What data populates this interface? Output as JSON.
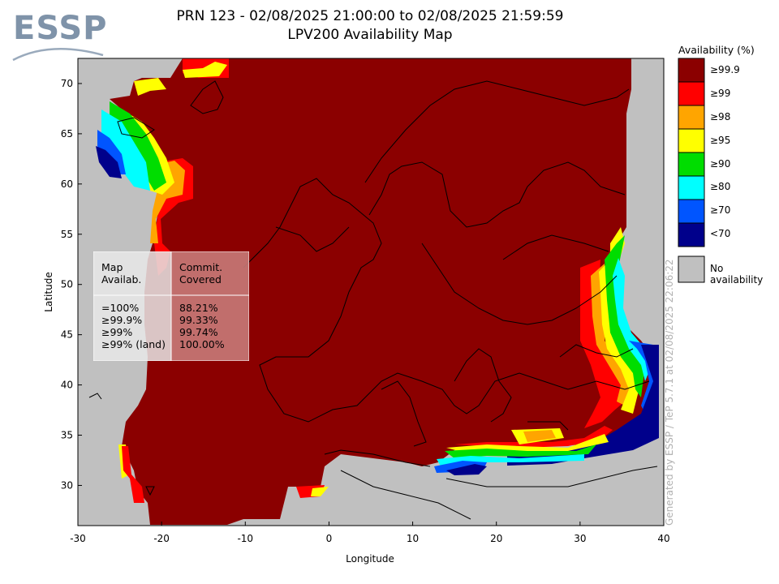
{
  "logo": {
    "text": "ESSP"
  },
  "title": {
    "line1": "PRN 123 - 02/08/2025 21:00:00 to 02/08/2025 21:59:59",
    "line2": "LPV200 Availability Map"
  },
  "axes": {
    "xlabel": "Longitude",
    "ylabel": "Latitude",
    "x_ticks": [
      "-30",
      "-20",
      "-10",
      "0",
      "10",
      "20",
      "30",
      "40"
    ],
    "y_ticks": [
      "70",
      "65",
      "60",
      "55",
      "50",
      "45",
      "40",
      "35",
      "30"
    ],
    "x_range": [
      -30,
      40
    ],
    "y_range": [
      26,
      72.5
    ]
  },
  "legend": {
    "title": "Availability (%)",
    "items": [
      {
        "label": "≥99.9",
        "color": "#8b0000"
      },
      {
        "label": "≥99",
        "color": "#ff0000"
      },
      {
        "label": "≥98",
        "color": "#ffa500"
      },
      {
        "label": "≥95",
        "color": "#ffff00"
      },
      {
        "label": "≥90",
        "color": "#00dd00"
      },
      {
        "label": "≥80",
        "color": "#00ffff"
      },
      {
        "label": "≥70",
        "color": "#0055ff"
      },
      {
        "label": "<70",
        "color": "#00008b"
      }
    ],
    "no_availability": {
      "label": "No availability",
      "color": "#c0c0c0"
    }
  },
  "stats_table": {
    "header_left": "Map\nAvailab.",
    "header_right": "Commit.\nCovered",
    "rows": [
      {
        "level": "=100%",
        "value": "88.21%"
      },
      {
        "level": "≥99.9%",
        "value": "99.33%"
      },
      {
        "level": "≥99%",
        "value": "99.74%"
      },
      {
        "level": "≥99% (land)",
        "value": "100.00%"
      }
    ]
  },
  "credit": "Generated by ESSP / TeP 5.7.1 at 02/08/2025 22:06:22",
  "colors": {
    "background": "#c0c0c0",
    "main": "#8b0000"
  }
}
